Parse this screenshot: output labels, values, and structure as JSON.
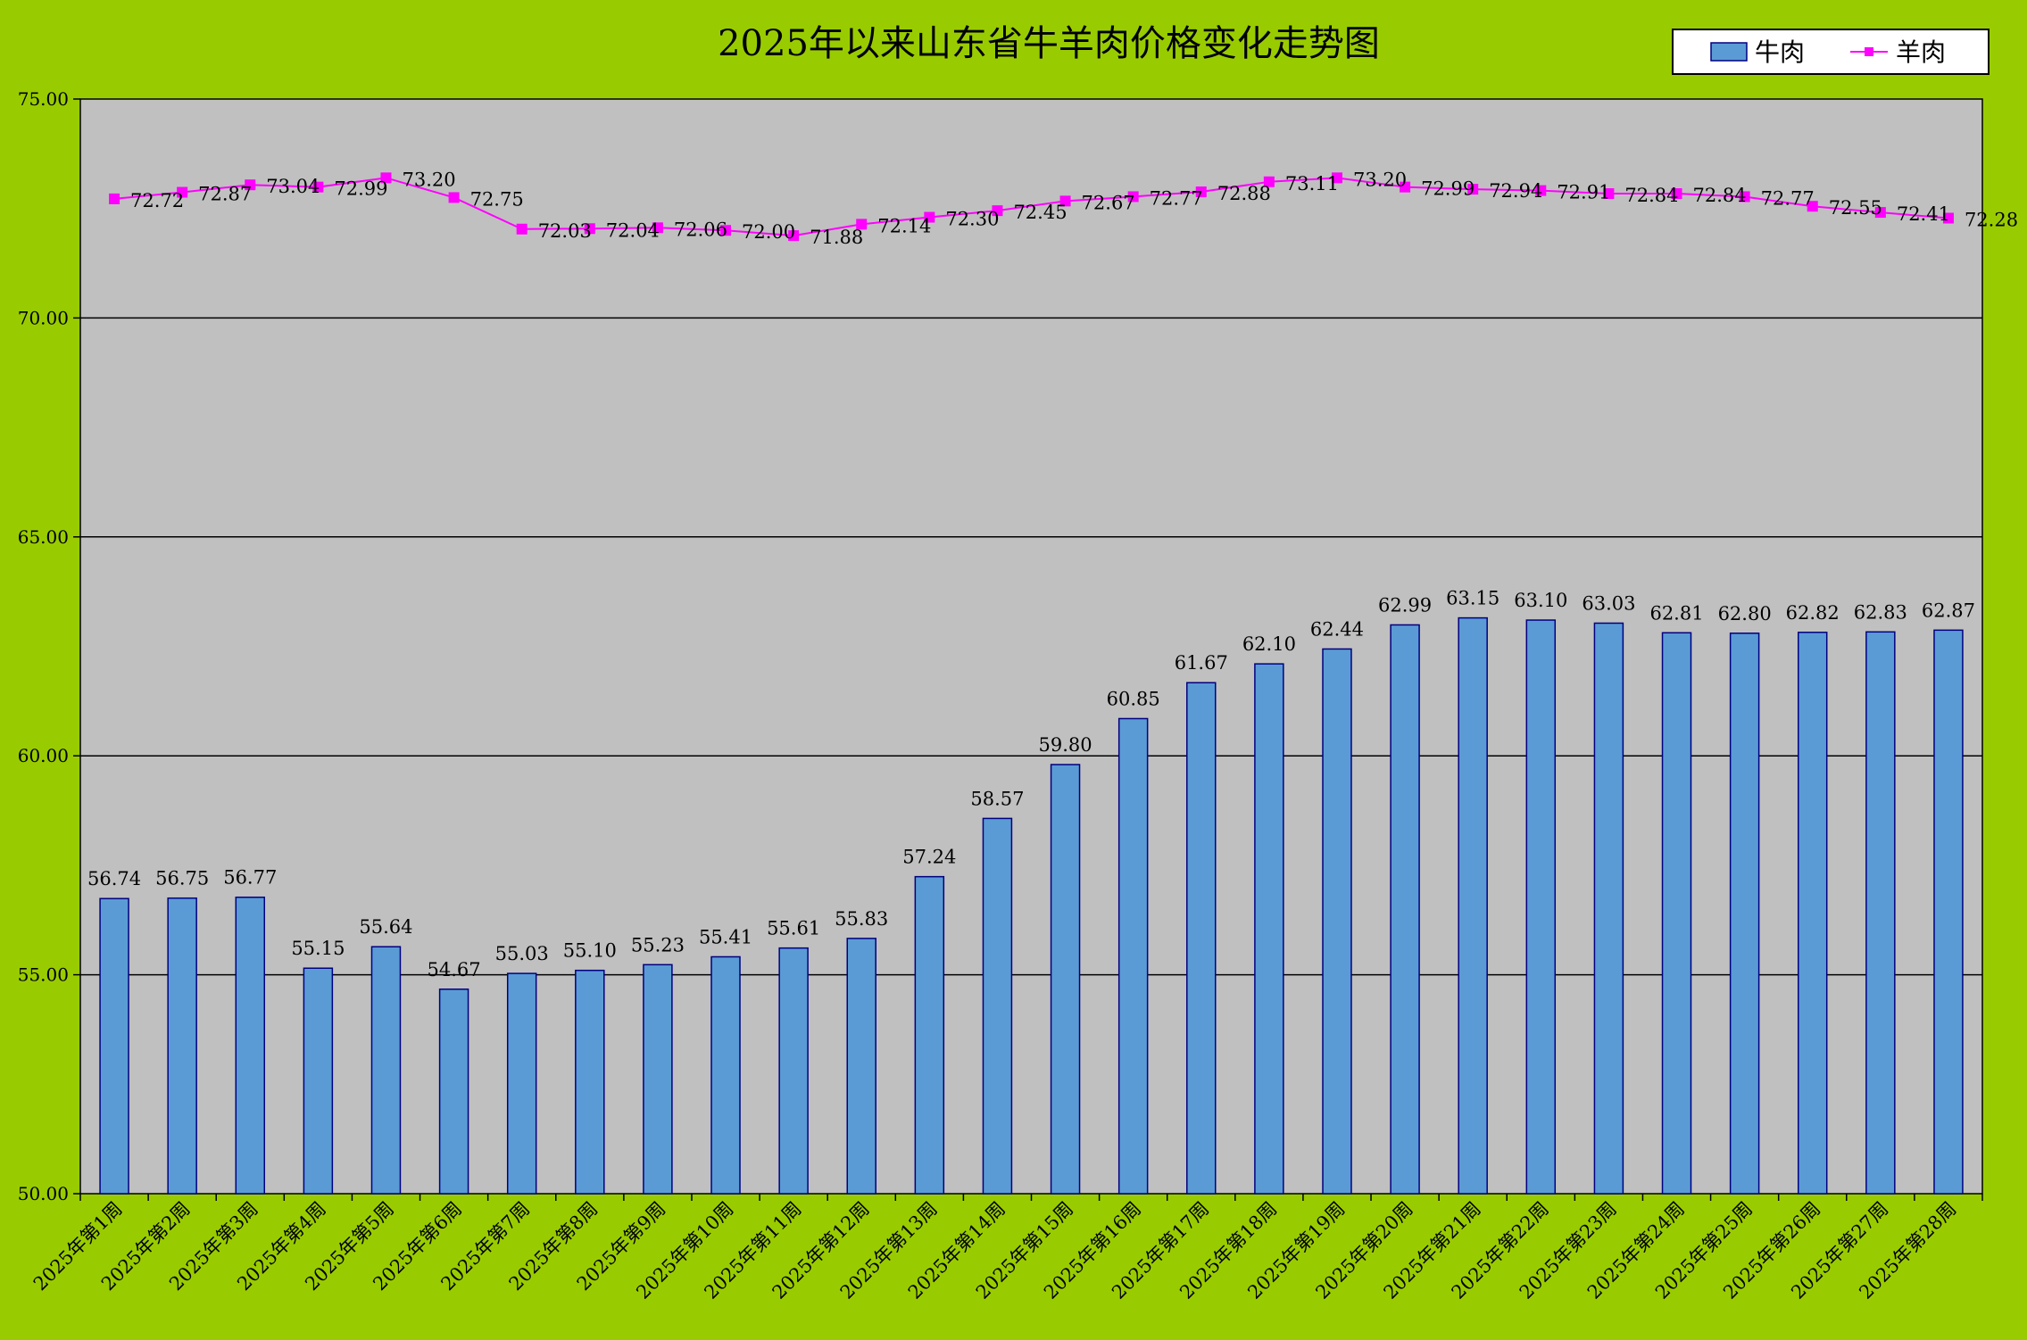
{
  "chart_data": {
    "type": "bar+line",
    "title": "2025年以来山东省牛羊肉价格变化走势图",
    "categories": [
      "2025年第1周",
      "2025年第2周",
      "2025年第3周",
      "2025年第4周",
      "2025年第5周",
      "2025年第6周",
      "2025年第7周",
      "2025年第8周",
      "2025年第9周",
      "2025年第10周",
      "2025年第11周",
      "2025年第12周",
      "2025年第13周",
      "2025年第14周",
      "2025年第15周",
      "2025年第16周",
      "2025年第17周",
      "2025年第18周",
      "2025年第19周",
      "2025年第20周",
      "2025年第21周",
      "2025年第22周",
      "2025年第23周",
      "2025年第24周",
      "2025年第25周",
      "2025年第26周",
      "2025年第27周",
      "2025年第28周"
    ],
    "series": [
      {
        "name": "牛肉",
        "type": "bar",
        "color": "#5b9bd5",
        "labels": [
          "56.74",
          "56.75",
          "56.77",
          "55.15",
          "55.64",
          "54.67",
          "55.03",
          "55.10",
          "55.23",
          "55.41",
          "55.61",
          "55.83",
          "57.24",
          "58.57",
          "59.80",
          "60.85",
          "61.67",
          "62.10",
          "62.44",
          "62.99",
          "63.15",
          "63.10",
          "63.03",
          "62.81",
          "62.80",
          "62.82",
          "62.83",
          "62.87"
        ],
        "values": [
          56.74,
          56.75,
          56.77,
          55.15,
          55.64,
          54.67,
          55.03,
          55.1,
          55.23,
          55.41,
          55.61,
          55.83,
          57.24,
          58.57,
          59.8,
          60.85,
          61.67,
          62.1,
          62.44,
          62.99,
          63.15,
          63.1,
          63.03,
          62.81,
          62.8,
          62.82,
          62.83,
          62.87
        ]
      },
      {
        "name": "羊肉",
        "type": "line",
        "color": "#ff00ff",
        "labels": [
          "72.72",
          "72.87",
          "73.04",
          "72.99",
          "73.20",
          "72.75",
          "72.03",
          "72.04",
          "72.06",
          "72.00",
          "71.88",
          "72.14",
          "72.30",
          "72.45",
          "72.67",
          "72.77",
          "72.88",
          "73.11",
          "73.20",
          "72.99",
          "72.94",
          "72.91",
          "72.84",
          "72.84",
          "72.77",
          "72.55",
          "72.41",
          "72.28"
        ],
        "values": [
          72.72,
          72.87,
          73.04,
          72.99,
          73.2,
          72.75,
          72.03,
          72.04,
          72.06,
          72.0,
          71.88,
          72.14,
          72.3,
          72.45,
          72.67,
          72.77,
          72.88,
          73.11,
          73.2,
          72.99,
          72.94,
          72.91,
          72.84,
          72.84,
          72.77,
          72.55,
          72.41,
          72.28
        ]
      }
    ],
    "ylim": [
      50,
      75
    ],
    "yticks": [
      "50.00",
      "55.00",
      "60.00",
      "65.00",
      "70.00",
      "75.00"
    ],
    "ytick_values": [
      50,
      55,
      60,
      65,
      70,
      75
    ],
    "grid": true,
    "legend_position": "top-right",
    "colors": {
      "page": "#99cc00",
      "plot_area": "#c0c0c0",
      "bar_edge": "#000080"
    }
  }
}
